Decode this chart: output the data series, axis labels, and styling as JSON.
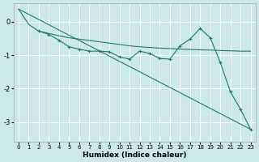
{
  "xlabel": "Humidex (Indice chaleur)",
  "bg_color": "#cce8e8",
  "grid_color": "#ffffff",
  "line_color": "#1a7a6e",
  "xlim": [
    -0.5,
    23.5
  ],
  "ylim": [
    -3.6,
    0.55
  ],
  "yticks": [
    0,
    -1,
    -2,
    -3
  ],
  "xticks": [
    0,
    1,
    2,
    3,
    4,
    5,
    6,
    7,
    8,
    9,
    10,
    11,
    12,
    13,
    14,
    15,
    16,
    17,
    18,
    19,
    20,
    21,
    22,
    23
  ],
  "series": [
    {
      "x": [
        0,
        1,
        2,
        3,
        4,
        5,
        6,
        7,
        8,
        9,
        10,
        11,
        12,
        13,
        14,
        15,
        16,
        17,
        18,
        19,
        20,
        21,
        22,
        23
      ],
      "y": [
        0.38,
        -0.08,
        -0.28,
        -0.35,
        -0.42,
        -0.48,
        -0.52,
        -0.56,
        -0.6,
        -0.64,
        -0.68,
        -0.72,
        -0.75,
        -0.77,
        -0.79,
        -0.8,
        -0.82,
        -0.83,
        -0.84,
        -0.85,
        -0.86,
        -0.87,
        -0.88,
        -0.88
      ],
      "marker": false
    },
    {
      "x": [
        2,
        3,
        4,
        5,
        6,
        7,
        8,
        9,
        10,
        11,
        12,
        13,
        14,
        15,
        16,
        17,
        18,
        19,
        20,
        21,
        22,
        23
      ],
      "y": [
        -0.28,
        -0.38,
        -0.55,
        -0.75,
        -0.82,
        -0.88,
        -0.88,
        -0.9,
        -1.05,
        -1.12,
        -0.88,
        -0.95,
        -1.1,
        -1.12,
        -0.72,
        -0.52,
        -0.2,
        -0.48,
        -1.22,
        -2.1,
        -2.62,
        -3.22
      ],
      "marker": true
    },
    {
      "x": [
        0,
        23
      ],
      "y": [
        0.38,
        -3.22
      ],
      "marker": false
    }
  ]
}
